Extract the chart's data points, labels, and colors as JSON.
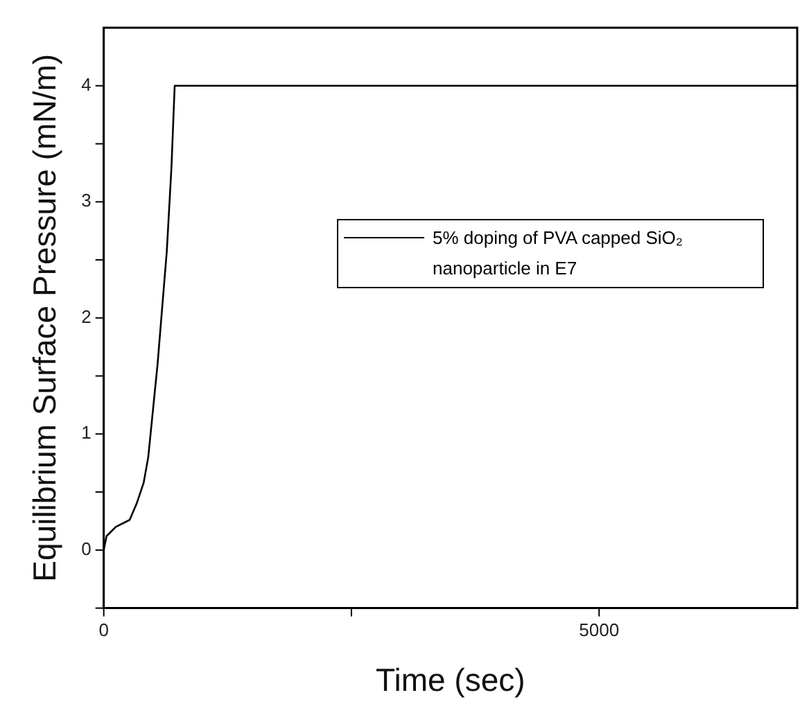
{
  "chart_data": {
    "type": "line",
    "xlabel": "Time (sec)",
    "ylabel": "Equilibrium Surface Pressure (mN/m)",
    "xlim": [
      0,
      7000
    ],
    "xticks": [
      0,
      {
        "value": 2500,
        "label": null
      },
      5000
    ],
    "ylim": [
      -0.5,
      4.5
    ],
    "yticks": [
      {
        "value": -0.5,
        "label": null
      },
      0,
      {
        "value": 0.5,
        "label": null
      },
      1,
      {
        "value": 1.5,
        "label": null
      },
      2,
      {
        "value": 2.5,
        "label": null
      },
      3,
      {
        "value": 3.5,
        "label": null
      },
      4
    ],
    "grid": false,
    "legend": "top right",
    "marker": "none",
    "line_style": "solid",
    "series": [
      {
        "name": "5% doping of PVA capped SiO₂ nanoparticle in E7",
        "color": "#000000",
        "x": [
          0,
          28,
          122,
          262,
          332,
          403,
          449,
          496,
          543,
          590,
          636,
          683,
          716,
          7000
        ],
        "values": [
          0,
          0.12,
          0.2,
          0.26,
          0.4,
          0.58,
          0.8,
          1.2,
          1.6,
          2.09,
          2.57,
          3.29,
          4,
          4
        ]
      }
    ]
  }
}
